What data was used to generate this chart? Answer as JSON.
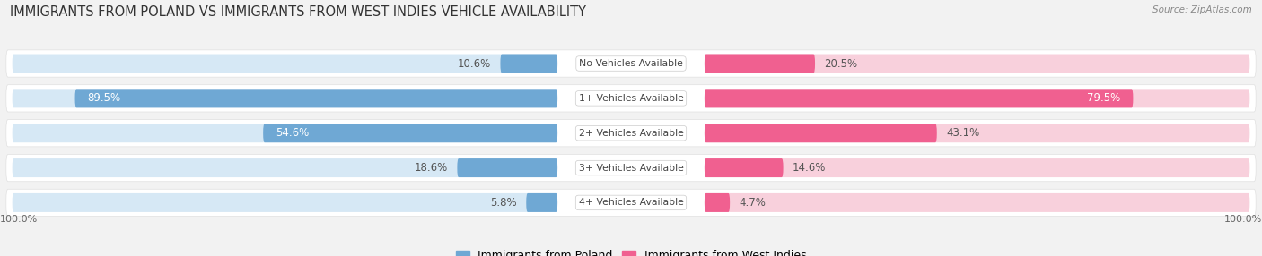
{
  "title": "IMMIGRANTS FROM POLAND VS IMMIGRANTS FROM WEST INDIES VEHICLE AVAILABILITY",
  "source": "Source: ZipAtlas.com",
  "categories": [
    "No Vehicles Available",
    "1+ Vehicles Available",
    "2+ Vehicles Available",
    "3+ Vehicles Available",
    "4+ Vehicles Available"
  ],
  "poland_values": [
    10.6,
    89.5,
    54.6,
    18.6,
    5.8
  ],
  "west_indies_values": [
    20.5,
    79.5,
    43.1,
    14.6,
    4.7
  ],
  "poland_color": "#6fa8d4",
  "poland_bg_color": "#d6e8f5",
  "west_indies_color": "#f06090",
  "west_indies_bg_color": "#f8d0dc",
  "poland_label": "Immigrants from Poland",
  "west_indies_label": "Immigrants from West Indies",
  "max_value": 100.0,
  "bg_color": "#f2f2f2",
  "row_bg_color": "#ffffff",
  "title_fontsize": 10.5,
  "label_fontsize": 8.5,
  "legend_fontsize": 9,
  "bar_height": 0.62,
  "x_axis_left": "100.0%",
  "x_axis_right": "100.0%"
}
